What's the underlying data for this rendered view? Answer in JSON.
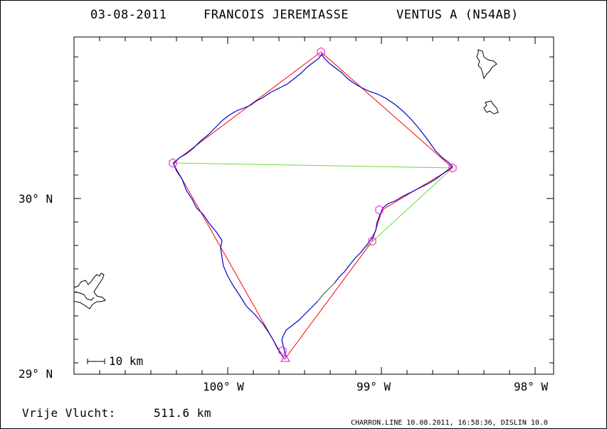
{
  "title": {
    "date": "03-08-2011",
    "pilot": "FRANCOIS JEREMIASSE",
    "glider": "VENTUS A (N54AB)"
  },
  "axes": {
    "lat_labels": [
      "30° N",
      "29° N"
    ],
    "lon_labels": [
      "100° W",
      "99° W",
      "98° W"
    ]
  },
  "scale": {
    "label": "10 km"
  },
  "footer": {
    "label": "Vrije Vlucht:",
    "distance": "511.6 km"
  },
  "credit": "CHARRON.LINE 10.08.2011, 16:58:36, DISLIN 10.0",
  "colors": {
    "track": "#0000cc",
    "task_leg": "#ff0000",
    "closing_leg": "#66dd33",
    "turnpoint": "#ee00ee",
    "terrain": "#000000"
  }
}
